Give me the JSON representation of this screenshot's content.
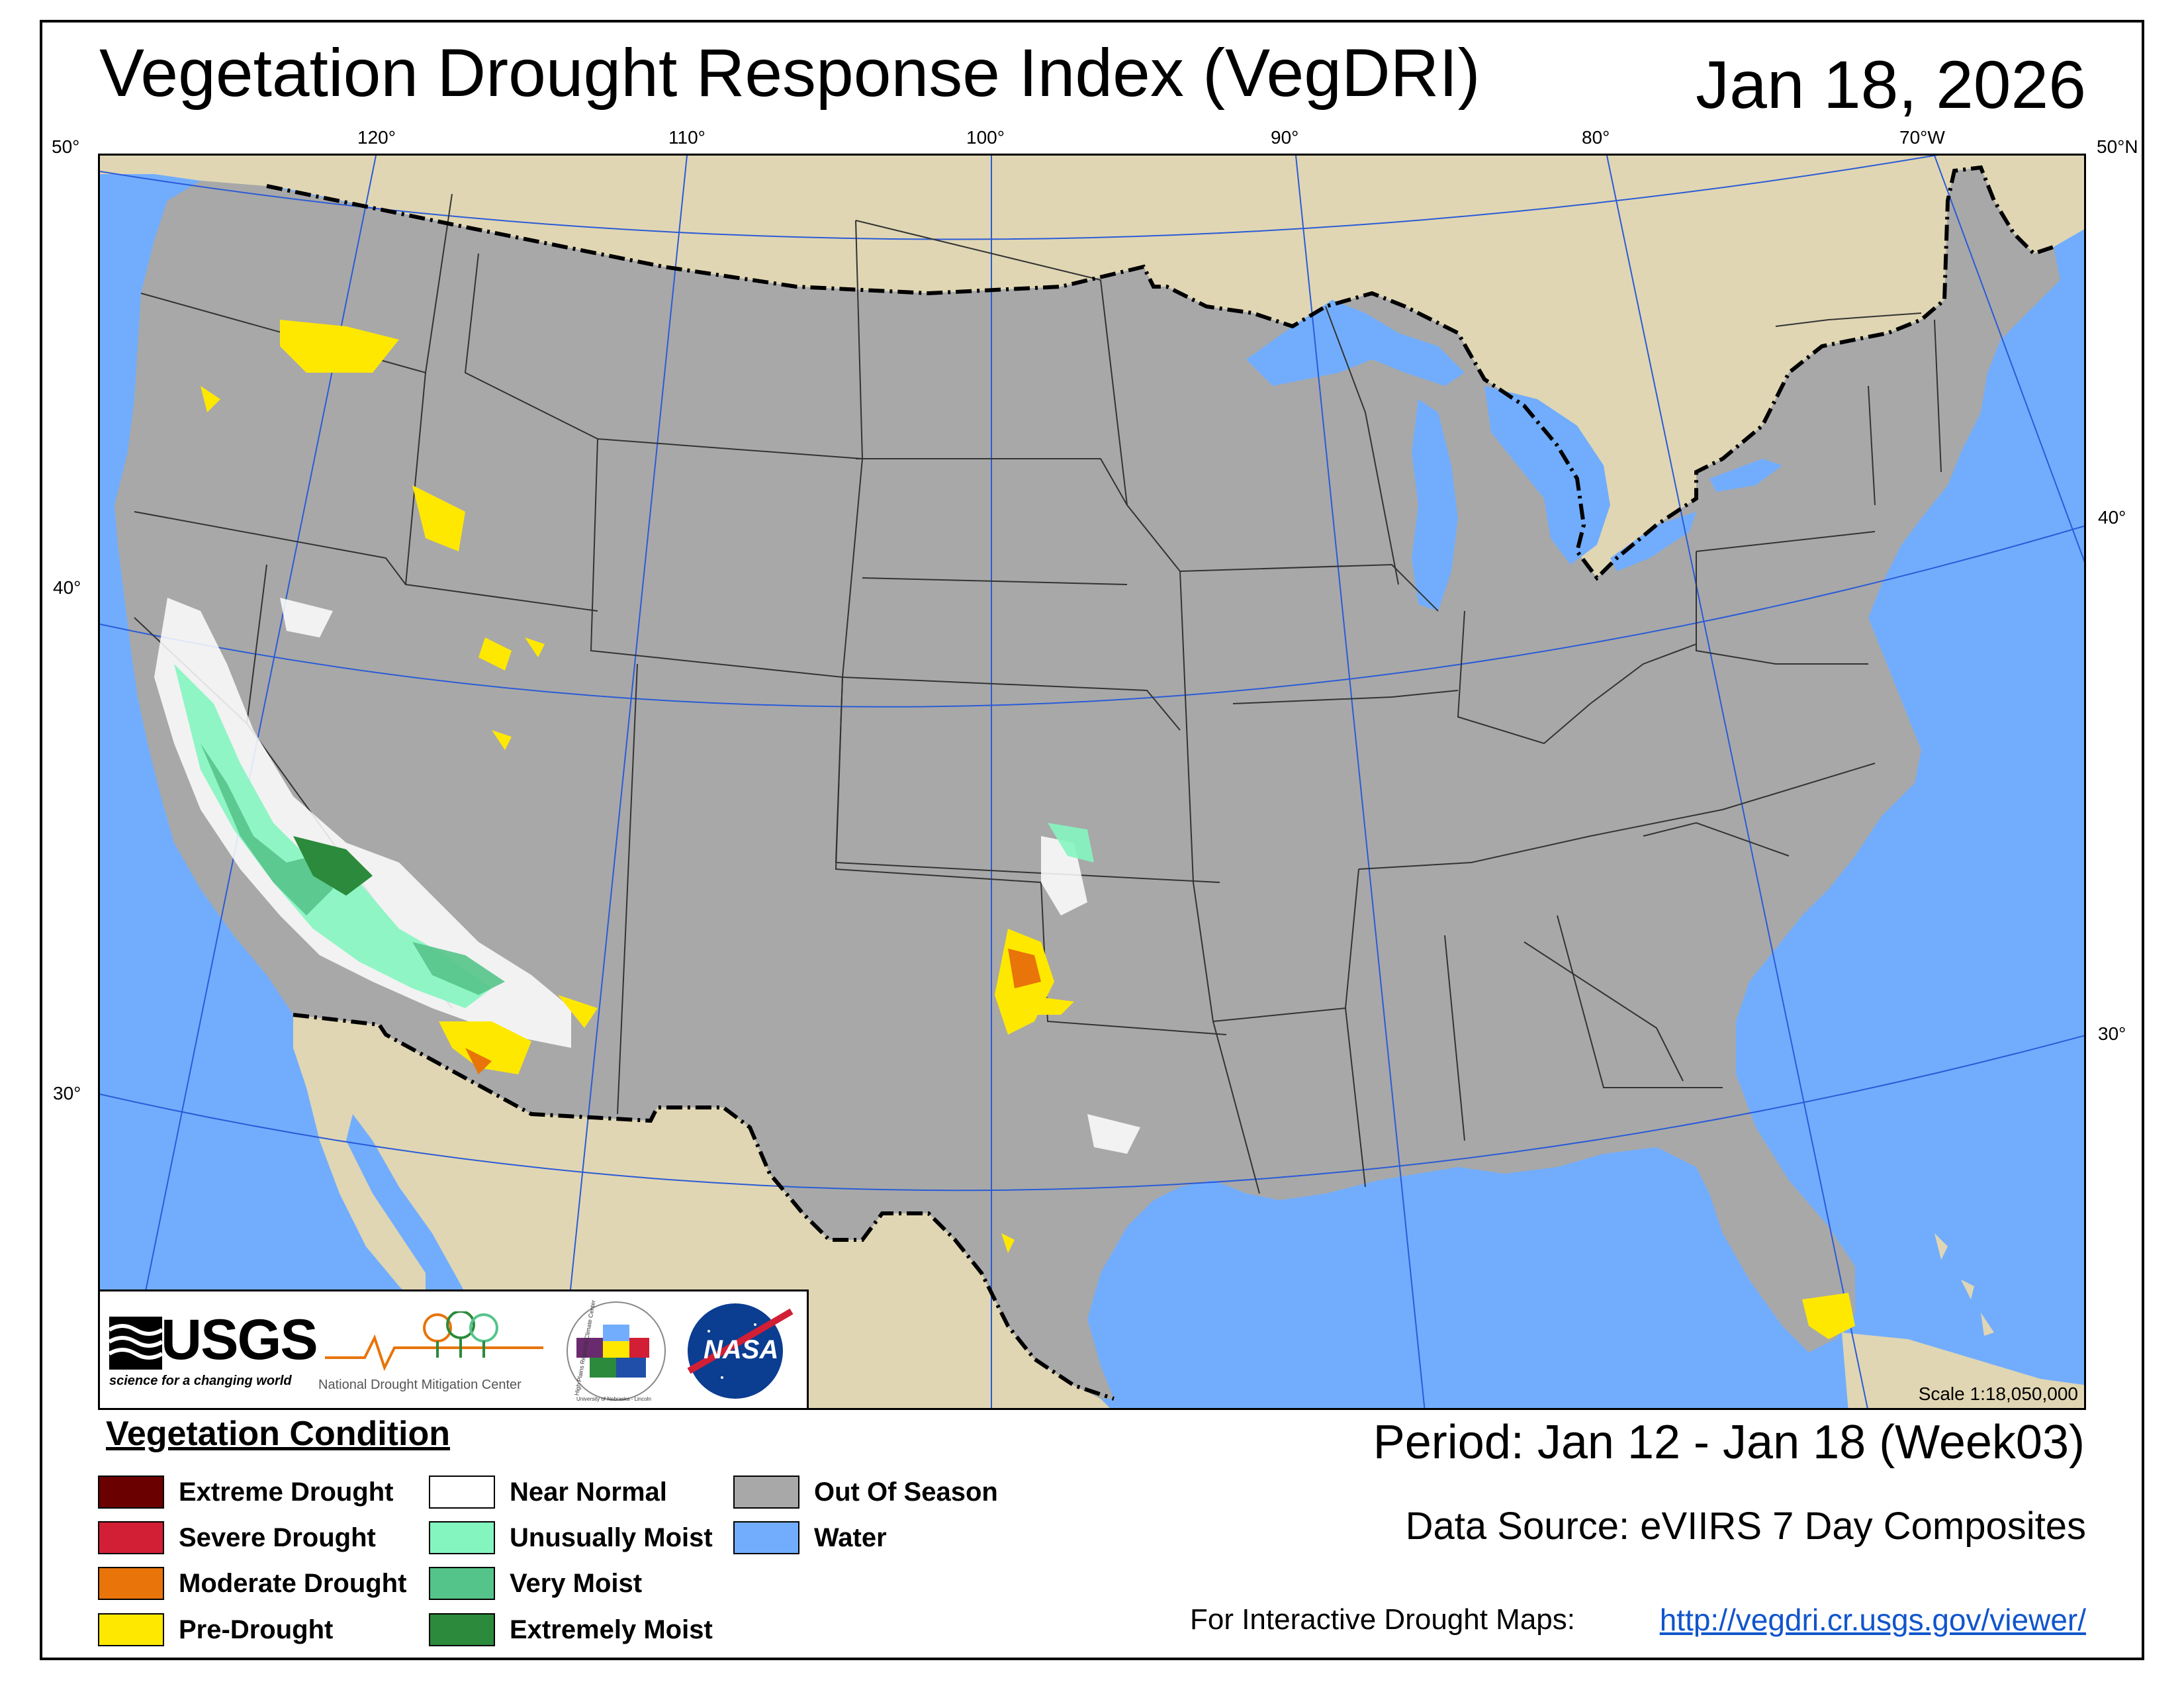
{
  "header": {
    "title": "Vegetation Drought Response Index (VegDRI)",
    "date": "Jan 18, 2026"
  },
  "graticule": {
    "top_labels": [
      "50°",
      "120°",
      "110°",
      "100°",
      "90°",
      "80°",
      "70°W",
      "50°N"
    ],
    "left_labels": [
      "40°",
      "30°"
    ],
    "right_labels": [
      "40°",
      "30°"
    ]
  },
  "map": {
    "colors": {
      "water": "#72adfd",
      "out_of_season": "#a8a8a8",
      "land_outside": "#e0d6b3",
      "near_normal": "#ffffff",
      "unusually_moist": "#85f5c0",
      "very_moist": "#55c48a",
      "extremely_moist": "#2b8a3b",
      "pre_drought": "#ffe800",
      "moderate_drought": "#e8740a",
      "severe_drought": "#d21f36",
      "extreme_drought": "#6b0000",
      "graticule": "#2a5bd7"
    },
    "scale": "Scale 1:18,050,000"
  },
  "logos": {
    "usgs_name": "USGS",
    "usgs_tagline": "science for a changing world",
    "ndmc_prefix": "National ",
    "ndmc_name": "Drought Mitigation Center",
    "hprcc_name": "High Plains Regional Climate Center",
    "hprcc_univ": "University of Nebraska - Lincoln",
    "nasa_name": "NASA"
  },
  "legend": {
    "title": "Vegetation Condition",
    "items": [
      {
        "label": "Extreme Drought",
        "color": "#6b0000"
      },
      {
        "label": "Severe Drought",
        "color": "#d21f36"
      },
      {
        "label": "Moderate Drought",
        "color": "#e8740a"
      },
      {
        "label": "Pre-Drought",
        "color": "#ffe800"
      },
      {
        "label": "Near Normal",
        "color": "#ffffff"
      },
      {
        "label": "Unusually Moist",
        "color": "#85f5c0"
      },
      {
        "label": "Very Moist",
        "color": "#55c48a"
      },
      {
        "label": "Extremely Moist",
        "color": "#2b8a3b"
      },
      {
        "label": "Out Of Season",
        "color": "#a8a8a8"
      },
      {
        "label": "Water",
        "color": "#72adfd"
      }
    ]
  },
  "footer": {
    "period": "Period:  Jan 12 - Jan 18 (Week03)",
    "source": "Data Source:  eVIIRS 7 Day Composites",
    "interactive_label": "For Interactive Drought Maps:",
    "interactive_link": "http://vegdri.cr.usgs.gov/viewer/"
  }
}
